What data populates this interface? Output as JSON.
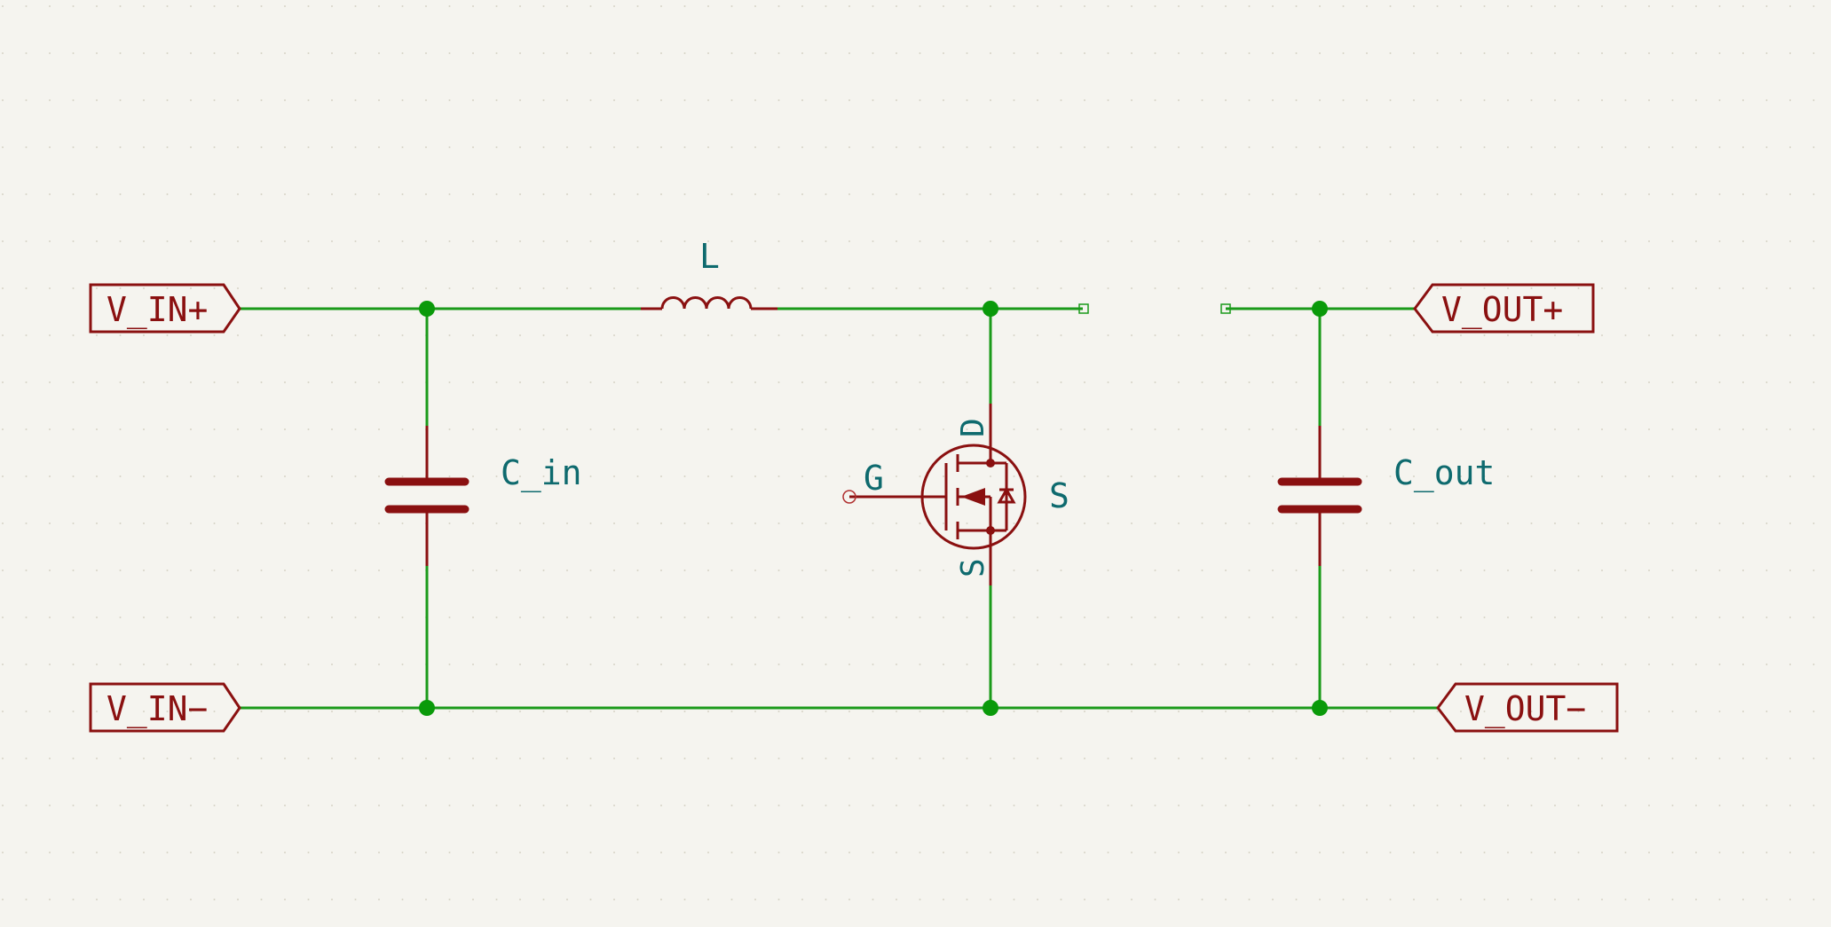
{
  "ports": {
    "vin_plus": "V_IN+",
    "vin_minus": "V_IN−",
    "vout_plus": "V_OUT+",
    "vout_minus": "V_OUT−"
  },
  "components": {
    "inductor": "L",
    "cap_in": "C_in",
    "cap_out": "C_out",
    "mosfet_gate": "G",
    "mosfet_source_label": "S",
    "mosfet_pin_d": "D",
    "mosfet_pin_s": "S"
  },
  "colors": {
    "background": "#f5f4ef",
    "wire": "#1a9a1a",
    "junction": "#0a9a0a",
    "symbol": "#8a1010",
    "label": "#0e6a6e"
  }
}
